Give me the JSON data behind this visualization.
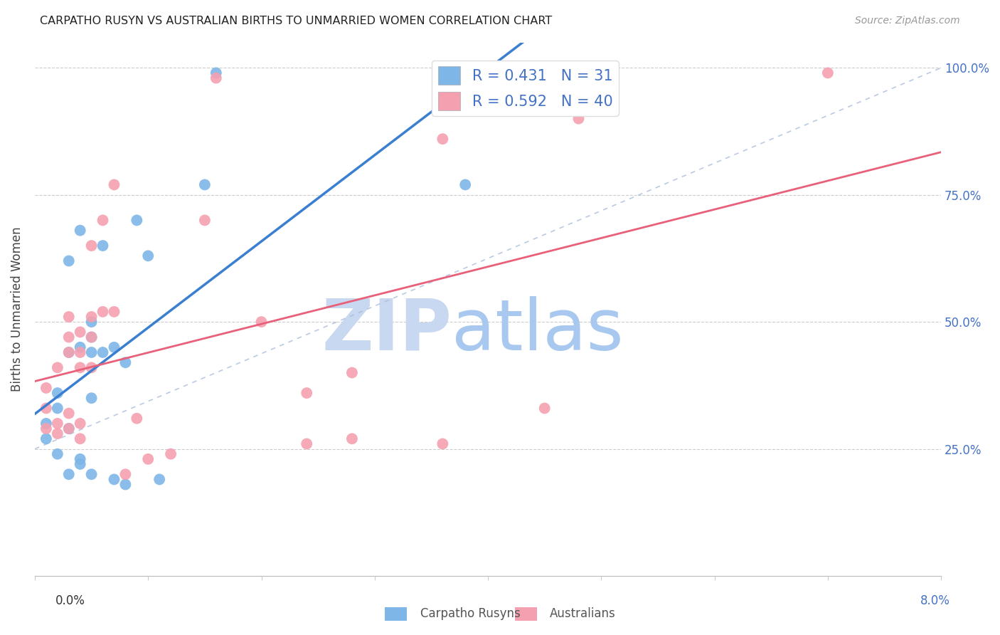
{
  "title": "CARPATHO RUSYN VS AUSTRALIAN BIRTHS TO UNMARRIED WOMEN CORRELATION CHART",
  "source": "Source: ZipAtlas.com",
  "ylabel": "Births to Unmarried Women",
  "xmin": 0.0,
  "xmax": 0.08,
  "ymin": 0.0,
  "ymax": 1.05,
  "blue_R": 0.431,
  "blue_N": 31,
  "pink_R": 0.592,
  "pink_N": 40,
  "blue_color": "#7EB6E8",
  "pink_color": "#F5A0B0",
  "blue_line_color": "#3A7FD0",
  "pink_line_color": "#E8607A",
  "blue_label": "Carpatho Rusyns",
  "pink_label": "Australians",
  "watermark_zip_color": "#C8D8F0",
  "watermark_atlas_color": "#A8C8F0",
  "yticks": [
    0.0,
    0.25,
    0.5,
    0.75,
    1.0
  ],
  "ytick_labels": [
    "",
    "25.0%",
    "50.0%",
    "75.0%",
    "100.0%"
  ],
  "blue_points_x": [
    0.001,
    0.001,
    0.002,
    0.002,
    0.002,
    0.003,
    0.003,
    0.003,
    0.003,
    0.004,
    0.004,
    0.004,
    0.004,
    0.005,
    0.005,
    0.005,
    0.005,
    0.005,
    0.006,
    0.006,
    0.007,
    0.007,
    0.008,
    0.008,
    0.009,
    0.01,
    0.011,
    0.015,
    0.016,
    0.038,
    0.038
  ],
  "blue_points_y": [
    0.27,
    0.3,
    0.33,
    0.36,
    0.24,
    0.2,
    0.29,
    0.44,
    0.62,
    0.22,
    0.23,
    0.45,
    0.68,
    0.2,
    0.35,
    0.44,
    0.47,
    0.5,
    0.44,
    0.65,
    0.45,
    0.19,
    0.18,
    0.42,
    0.7,
    0.63,
    0.19,
    0.77,
    0.99,
    0.99,
    0.77
  ],
  "pink_points_x": [
    0.001,
    0.001,
    0.001,
    0.002,
    0.002,
    0.002,
    0.003,
    0.003,
    0.003,
    0.003,
    0.003,
    0.004,
    0.004,
    0.004,
    0.004,
    0.004,
    0.005,
    0.005,
    0.005,
    0.005,
    0.006,
    0.006,
    0.007,
    0.007,
    0.008,
    0.009,
    0.01,
    0.012,
    0.015,
    0.016,
    0.02,
    0.024,
    0.024,
    0.028,
    0.028,
    0.036,
    0.036,
    0.045,
    0.048,
    0.07
  ],
  "pink_points_y": [
    0.29,
    0.33,
    0.37,
    0.28,
    0.3,
    0.41,
    0.29,
    0.32,
    0.44,
    0.47,
    0.51,
    0.27,
    0.3,
    0.41,
    0.44,
    0.48,
    0.41,
    0.47,
    0.51,
    0.65,
    0.52,
    0.7,
    0.52,
    0.77,
    0.2,
    0.31,
    0.23,
    0.24,
    0.7,
    0.98,
    0.5,
    0.26,
    0.36,
    0.27,
    0.4,
    0.26,
    0.86,
    0.33,
    0.9,
    0.99
  ]
}
